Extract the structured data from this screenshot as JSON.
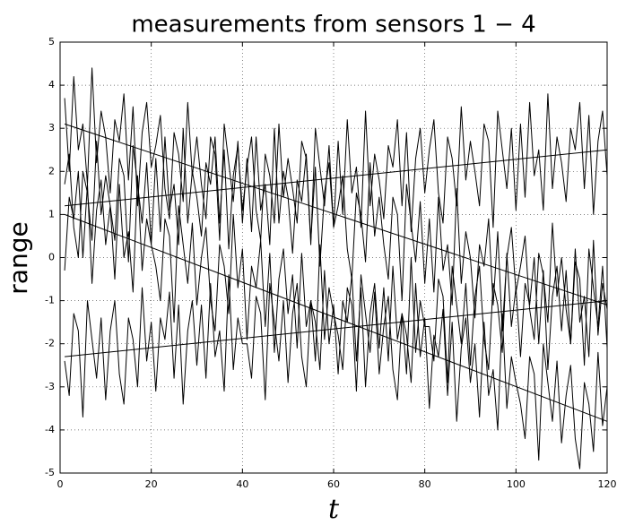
{
  "chart_data": {
    "type": "line",
    "title": "measurements from sensors 1 − 4",
    "xlabel": "t",
    "ylabel": "range",
    "xlim": [
      0,
      120
    ],
    "xticks": [
      0,
      20,
      40,
      60,
      80,
      100,
      120
    ],
    "ylim": [
      -5,
      5
    ],
    "yticks": [
      -5,
      -4,
      -3,
      -2,
      -1,
      0,
      1,
      2,
      3,
      4,
      5
    ],
    "grid": true,
    "x": [
      1,
      2,
      3,
      4,
      5,
      6,
      7,
      8,
      9,
      10,
      11,
      12,
      13,
      14,
      15,
      16,
      17,
      18,
      19,
      20,
      21,
      22,
      23,
      24,
      25,
      26,
      27,
      28,
      29,
      30,
      31,
      32,
      33,
      34,
      35,
      36,
      37,
      38,
      39,
      40,
      41,
      42,
      43,
      44,
      45,
      46,
      47,
      48,
      49,
      50,
      51,
      52,
      53,
      54,
      55,
      56,
      57,
      58,
      59,
      60,
      61,
      62,
      63,
      64,
      65,
      66,
      67,
      68,
      69,
      70,
      71,
      72,
      73,
      74,
      75,
      76,
      77,
      78,
      79,
      80,
      81,
      82,
      83,
      84,
      85,
      86,
      87,
      88,
      89,
      90,
      91,
      92,
      93,
      94,
      95,
      96,
      97,
      98,
      99,
      100,
      101,
      102,
      103,
      104,
      105,
      106,
      107,
      108,
      109,
      110,
      111,
      112,
      113,
      114,
      115,
      116,
      117,
      118,
      119,
      120
    ],
    "series": [
      {
        "color": "#000000",
        "values": [
          3.7,
          2.0,
          4.2,
          2.5,
          3.1,
          1.7,
          4.4,
          2.2,
          3.4,
          2.8,
          1.5,
          3.2,
          2.7,
          3.8,
          1.8,
          3.5,
          1.2,
          2.9,
          3.6,
          2.1,
          2.6,
          3.3,
          1.6,
          0.9,
          2.9,
          2.4,
          1.3,
          3.6,
          1.9,
          2.8,
          1.7,
          0.9,
          2.8,
          2.4,
          0.4,
          3.1,
          2.2,
          1.3,
          2.7,
          0.8,
          2.3,
          0.6,
          2.8,
          1.1,
          1.7,
          0.3,
          3.0,
          0.8,
          2.0,
          1.4,
          0.1,
          1.8,
          1.3,
          2.4,
          0.4,
          2.1,
          -0.2,
          1.5,
          2.2,
          0.7,
          1.2,
          1.9,
          0.2,
          -0.5,
          1.5,
          1.0,
          -0.1,
          2.2,
          0.5,
          1.4,
          0.3,
          -0.5,
          1.4,
          1.0,
          -1.0,
          1.7,
          0.8,
          -0.1,
          1.3,
          -0.6,
          0.9,
          -0.8,
          1.4,
          -0.3,
          0.3,
          -1.1,
          1.6,
          -0.6,
          0.6,
          0.0,
          -1.4,
          0.3,
          -0.2,
          0.9,
          -1.1,
          0.6,
          -1.7,
          0.0,
          0.7,
          -0.8,
          -0.2,
          0.5,
          -1.2,
          -1.9,
          0.1,
          -0.4,
          -1.5,
          0.8,
          -0.9,
          0.0,
          -1.2,
          -2.0,
          -0.1,
          -0.5,
          -2.5,
          0.2,
          -0.7,
          -1.6,
          -0.2,
          -2.1
        ]
      },
      {
        "color": "#000000",
        "values": [
          1.7,
          2.4,
          0.7,
          0.0,
          2.0,
          1.5,
          0.4,
          2.7,
          1.0,
          1.9,
          1.2,
          0.4,
          2.3,
          1.9,
          -0.1,
          2.6,
          1.7,
          0.8,
          2.2,
          0.3,
          2.3,
          0.6,
          2.8,
          1.1,
          1.7,
          0.3,
          3.0,
          0.8,
          2.0,
          1.4,
          0.5,
          2.2,
          1.7,
          2.8,
          0.8,
          2.5,
          0.2,
          1.9,
          2.6,
          1.1,
          2.1,
          2.8,
          1.1,
          0.4,
          2.4,
          1.9,
          0.8,
          3.1,
          1.4,
          2.3,
          1.6,
          0.8,
          2.7,
          2.3,
          0.3,
          3.0,
          2.1,
          1.2,
          2.6,
          0.7,
          2.7,
          1.0,
          3.2,
          1.5,
          2.1,
          0.7,
          3.4,
          1.2,
          2.4,
          1.8,
          0.9,
          2.6,
          2.1,
          3.2,
          1.2,
          2.9,
          0.6,
          2.3,
          3.0,
          1.5,
          2.5,
          3.2,
          1.5,
          0.8,
          2.8,
          2.3,
          1.2,
          3.5,
          1.8,
          2.7,
          2.0,
          1.2,
          3.1,
          2.7,
          0.7,
          3.4,
          2.5,
          1.6,
          3.0,
          1.1,
          3.1,
          1.4,
          3.6,
          1.9,
          2.5,
          1.1,
          3.8,
          1.6,
          2.8,
          2.2,
          1.3,
          3.0,
          2.5,
          3.6,
          1.6,
          3.3,
          1.0,
          2.7,
          3.4,
          1.9
        ]
      },
      {
        "color": "#000000",
        "values": [
          -0.3,
          1.4,
          0.9,
          2.0,
          0.0,
          1.7,
          -0.6,
          1.1,
          1.8,
          0.3,
          1.2,
          -0.5,
          1.7,
          0.0,
          0.6,
          -0.8,
          1.9,
          -0.3,
          0.9,
          0.3,
          -0.2,
          -1.0,
          0.9,
          0.5,
          -1.5,
          1.2,
          0.3,
          -0.6,
          0.8,
          -1.1,
          0.0,
          0.7,
          -1.0,
          -1.7,
          0.3,
          -0.2,
          -1.3,
          1.0,
          -0.7,
          0.2,
          -1.9,
          -0.2,
          -0.7,
          0.4,
          -1.6,
          0.1,
          -2.2,
          -0.5,
          0.2,
          -1.3,
          -0.4,
          -2.1,
          0.1,
          -1.6,
          -1.0,
          -2.4,
          0.3,
          -1.9,
          -0.7,
          -1.3,
          -1.8,
          -2.6,
          -0.7,
          -1.1,
          -3.1,
          -0.4,
          -1.3,
          -2.2,
          -0.8,
          -2.7,
          -1.6,
          -0.9,
          -2.6,
          -3.3,
          -1.3,
          -1.8,
          -2.9,
          -0.6,
          -2.3,
          -1.4,
          -3.5,
          -1.8,
          -2.3,
          -1.2,
          -3.2,
          -1.5,
          -3.8,
          -2.1,
          -1.4,
          -2.9,
          -2.0,
          -3.7,
          -1.5,
          -3.2,
          -2.6,
          -4.0,
          -1.3,
          -3.5,
          -2.3,
          -2.9,
          -3.4,
          -4.2,
          -2.3,
          -2.7,
          -4.7,
          -2.0,
          -2.9,
          -3.8,
          -2.4,
          -4.3,
          -3.2,
          -2.5,
          -4.2,
          -4.9,
          -2.9,
          -3.4,
          -4.5,
          -2.2,
          -3.9,
          -3.0
        ]
      },
      {
        "color": "#000000",
        "values": [
          -2.4,
          -3.2,
          -1.3,
          -1.7,
          -3.7,
          -1.0,
          -1.9,
          -2.8,
          -1.4,
          -3.3,
          -1.7,
          -1.0,
          -2.7,
          -3.4,
          -1.4,
          -1.9,
          -3.0,
          -0.7,
          -2.4,
          -1.5,
          -3.1,
          -1.4,
          -1.9,
          -0.8,
          -2.8,
          -1.1,
          -3.4,
          -1.7,
          -1.0,
          -2.5,
          -1.1,
          -2.8,
          -0.6,
          -2.3,
          -1.7,
          -3.1,
          -0.4,
          -2.6,
          -1.4,
          -2.0,
          -2.0,
          -2.8,
          -0.9,
          -1.3,
          -3.3,
          -0.6,
          -1.5,
          -2.4,
          -1.0,
          -2.9,
          -1.3,
          -0.6,
          -2.3,
          -3.0,
          -1.0,
          -1.5,
          -2.6,
          -0.3,
          -2.0,
          -1.1,
          -2.7,
          -1.0,
          -1.5,
          -0.4,
          -2.4,
          -0.7,
          -3.0,
          -1.3,
          -0.6,
          -2.1,
          -0.7,
          -2.4,
          -0.2,
          -1.9,
          -1.3,
          -2.7,
          0.0,
          -2.2,
          -1.0,
          -1.6,
          -1.6,
          -2.4,
          -0.5,
          -0.9,
          -2.9,
          -0.2,
          -1.1,
          -2.0,
          -0.6,
          -2.5,
          -0.9,
          -0.2,
          -1.9,
          -2.6,
          -0.6,
          -1.1,
          -2.2,
          0.1,
          -1.6,
          -0.7,
          -2.3,
          -0.6,
          -1.1,
          0.0,
          -2.0,
          -0.3,
          -2.6,
          -0.9,
          -0.2,
          -1.7,
          -0.3,
          -2.0,
          0.2,
          -1.5,
          -0.9,
          -2.3,
          0.4,
          -1.8,
          -0.6,
          -1.2
        ]
      },
      {
        "color": "#000000",
        "x": [
          1,
          120
        ],
        "values": [
          3.1,
          -1.1
        ]
      },
      {
        "color": "#000000",
        "x": [
          1,
          120
        ],
        "values": [
          1.2,
          2.5
        ]
      },
      {
        "color": "#000000",
        "x": [
          1,
          120
        ],
        "values": [
          1.0,
          -3.8
        ]
      },
      {
        "color": "#000000",
        "x": [
          1,
          120
        ],
        "values": [
          -2.3,
          -1.0
        ]
      }
    ]
  }
}
